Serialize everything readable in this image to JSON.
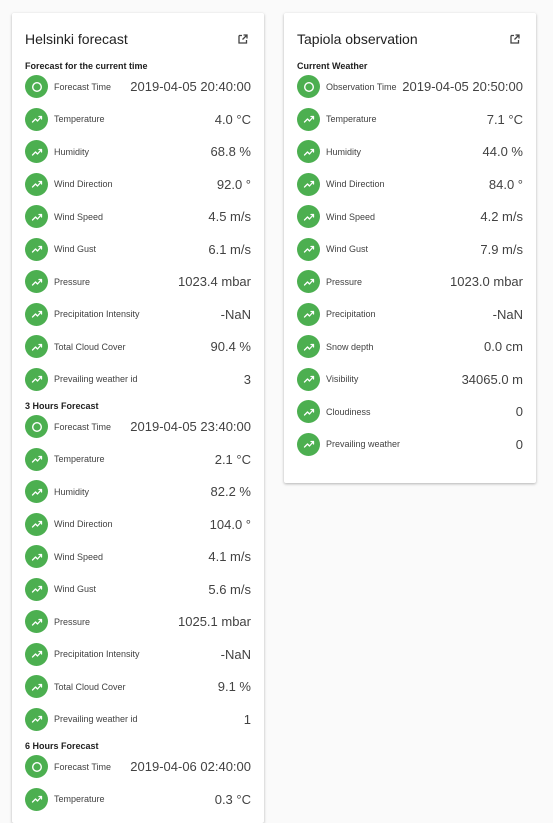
{
  "left_card": {
    "title": "Helsinki forecast",
    "sections": [
      {
        "title": "Forecast for the current time",
        "rows": [
          {
            "label": "Forecast Time",
            "value": "2019-04-05 20:40:00",
            "icon": "clock-icon"
          },
          {
            "label": "Temperature",
            "value": "4.0 °C",
            "icon": "trend-icon"
          },
          {
            "label": "Humidity",
            "value": "68.8 %",
            "icon": "trend-icon"
          },
          {
            "label": "Wind Direction",
            "value": "92.0 °",
            "icon": "trend-icon"
          },
          {
            "label": "Wind Speed",
            "value": "4.5 m/s",
            "icon": "trend-icon"
          },
          {
            "label": "Wind Gust",
            "value": "6.1 m/s",
            "icon": "trend-icon"
          },
          {
            "label": "Pressure",
            "value": "1023.4 mbar",
            "icon": "trend-icon"
          },
          {
            "label": "Precipitation Intensity",
            "value": "-NaN",
            "icon": "trend-icon"
          },
          {
            "label": "Total Cloud Cover",
            "value": "90.4 %",
            "icon": "trend-icon"
          },
          {
            "label": "Prevailing weather id",
            "value": "3",
            "icon": "trend-icon"
          }
        ]
      },
      {
        "title": "3 Hours Forecast",
        "rows": [
          {
            "label": "Forecast Time",
            "value": "2019-04-05 23:40:00",
            "icon": "clock-icon"
          },
          {
            "label": "Temperature",
            "value": "2.1 °C",
            "icon": "trend-icon"
          },
          {
            "label": "Humidity",
            "value": "82.2 %",
            "icon": "trend-icon"
          },
          {
            "label": "Wind Direction",
            "value": "104.0 °",
            "icon": "trend-icon"
          },
          {
            "label": "Wind Speed",
            "value": "4.1 m/s",
            "icon": "trend-icon"
          },
          {
            "label": "Wind Gust",
            "value": "5.6 m/s",
            "icon": "trend-icon"
          },
          {
            "label": "Pressure",
            "value": "1025.1 mbar",
            "icon": "trend-icon"
          },
          {
            "label": "Precipitation Intensity",
            "value": "-NaN",
            "icon": "trend-icon"
          },
          {
            "label": "Total Cloud Cover",
            "value": "9.1 %",
            "icon": "trend-icon"
          },
          {
            "label": "Prevailing weather id",
            "value": "1",
            "icon": "trend-icon"
          }
        ]
      },
      {
        "title": "6 Hours Forecast",
        "rows": [
          {
            "label": "Forecast Time",
            "value": "2019-04-06 02:40:00",
            "icon": "clock-icon"
          },
          {
            "label": "Temperature",
            "value": "0.3 °C",
            "icon": "trend-icon"
          }
        ]
      }
    ]
  },
  "right_card": {
    "title": "Tapiola observation",
    "sections": [
      {
        "title": "Current Weather",
        "rows": [
          {
            "label": "Observation Time",
            "value": "2019-04-05 20:50:00",
            "icon": "clock-icon"
          },
          {
            "label": "Temperature",
            "value": "7.1 °C",
            "icon": "trend-icon"
          },
          {
            "label": "Humidity",
            "value": "44.0 %",
            "icon": "trend-icon"
          },
          {
            "label": "Wind Direction",
            "value": "84.0 °",
            "icon": "trend-icon"
          },
          {
            "label": "Wind Speed",
            "value": "4.2 m/s",
            "icon": "trend-icon"
          },
          {
            "label": "Wind Gust",
            "value": "7.9 m/s",
            "icon": "trend-icon"
          },
          {
            "label": "Pressure",
            "value": "1023.0 mbar",
            "icon": "trend-icon"
          },
          {
            "label": "Precipitation",
            "value": "-NaN",
            "icon": "trend-icon"
          },
          {
            "label": "Snow depth",
            "value": "0.0 cm",
            "icon": "trend-icon"
          },
          {
            "label": "Visibility",
            "value": "34065.0 m",
            "icon": "trend-icon"
          },
          {
            "label": "Cloudiness",
            "value": "0",
            "icon": "trend-icon"
          },
          {
            "label": "Prevailing weather",
            "value": "0",
            "icon": "trend-icon"
          }
        ]
      }
    ]
  },
  "colors": {
    "badge": "#4caf50",
    "card": "#ffffff",
    "background": "#fafafa"
  },
  "header_icon": "open-in-new-icon"
}
